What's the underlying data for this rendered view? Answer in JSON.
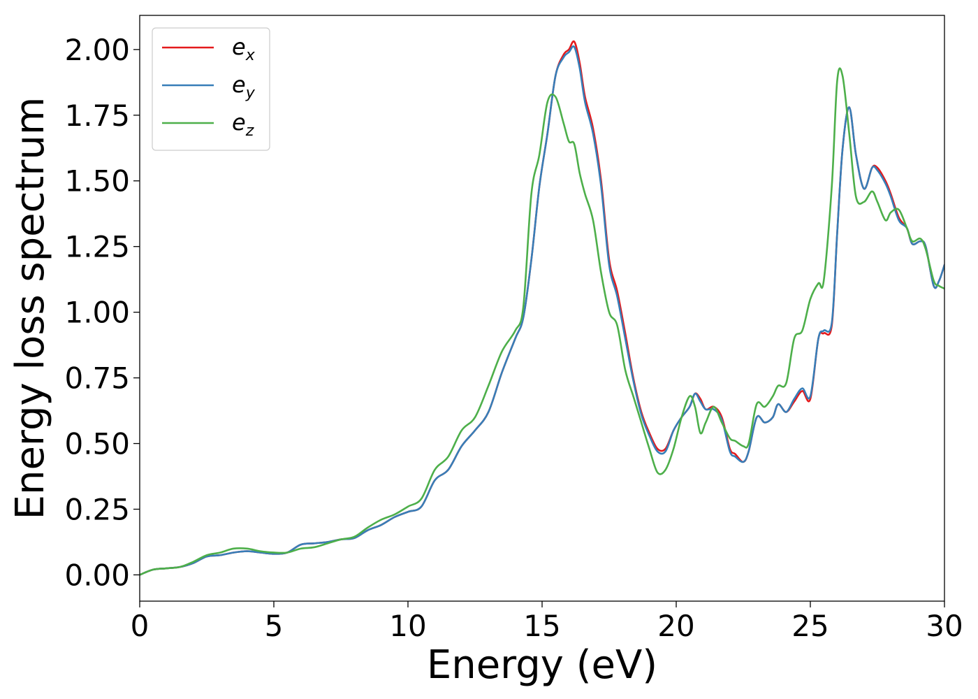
{
  "chart_data": {
    "type": "line",
    "title": "",
    "xlabel": "Energy (eV)",
    "ylabel": "Energy loss spectrum",
    "xlim": [
      0,
      30
    ],
    "ylim": [
      -0.1,
      2.13
    ],
    "xticks": [
      0,
      5,
      10,
      15,
      20,
      25,
      30
    ],
    "xtick_labels": [
      "0",
      "5",
      "10",
      "15",
      "20",
      "25",
      "30"
    ],
    "yticks": [
      0,
      0.25,
      0.5,
      0.75,
      1.0,
      1.25,
      1.5,
      1.75,
      2.0
    ],
    "ytick_labels": [
      "0.00",
      "0.25",
      "0.50",
      "0.75",
      "1.00",
      "1.25",
      "1.50",
      "1.75",
      "2.00"
    ],
    "grid": false,
    "legend_position": "top-left",
    "series": [
      {
        "name": "e_x",
        "legend_base": "e",
        "legend_sub": "x",
        "color": "#e41a1c",
        "x": [
          0,
          0.5,
          1,
          1.5,
          2,
          2.5,
          3,
          3.5,
          4,
          4.5,
          5,
          5.5,
          6,
          6.5,
          7,
          7.5,
          8,
          8.5,
          9,
          9.5,
          10,
          10.5,
          11,
          11.5,
          12,
          12.5,
          13,
          13.5,
          14,
          14.3,
          14.6,
          14.9,
          15.2,
          15.5,
          15.8,
          16.0,
          16.2,
          16.4,
          16.6,
          16.9,
          17.2,
          17.5,
          17.8,
          18.1,
          18.4,
          18.7,
          19.0,
          19.3,
          19.6,
          19.9,
          20.2,
          20.5,
          20.7,
          20.9,
          21.1,
          21.4,
          21.7,
          22.0,
          22.2,
          22.5,
          22.7,
          23.0,
          23.3,
          23.6,
          23.8,
          24.1,
          24.4,
          24.7,
          25.0,
          25.3,
          25.5,
          25.8,
          26.0,
          26.2,
          26.45,
          26.7,
          27.0,
          27.3,
          27.5,
          27.8,
          28.0,
          28.3,
          28.6,
          28.8,
          29.1,
          29.3,
          29.6,
          29.8,
          30.0
        ],
        "values": [
          0.0,
          0.02,
          0.025,
          0.03,
          0.045,
          0.07,
          0.075,
          0.085,
          0.09,
          0.085,
          0.08,
          0.085,
          0.115,
          0.12,
          0.125,
          0.135,
          0.14,
          0.17,
          0.19,
          0.22,
          0.24,
          0.26,
          0.36,
          0.4,
          0.49,
          0.55,
          0.62,
          0.77,
          0.9,
          0.98,
          1.2,
          1.48,
          1.68,
          1.9,
          1.98,
          2.0,
          2.03,
          1.95,
          1.82,
          1.7,
          1.5,
          1.2,
          1.08,
          0.92,
          0.75,
          0.62,
          0.54,
          0.48,
          0.48,
          0.55,
          0.6,
          0.64,
          0.69,
          0.67,
          0.63,
          0.64,
          0.6,
          0.48,
          0.46,
          0.43,
          0.47,
          0.6,
          0.58,
          0.6,
          0.65,
          0.62,
          0.66,
          0.7,
          0.67,
          0.9,
          0.92,
          0.95,
          1.3,
          1.62,
          1.78,
          1.6,
          1.47,
          1.55,
          1.55,
          1.5,
          1.45,
          1.36,
          1.32,
          1.26,
          1.27,
          1.25,
          1.1,
          1.12,
          1.18
        ]
      },
      {
        "name": "e_y",
        "legend_base": "e",
        "legend_sub": "y",
        "color": "#377eb8",
        "x": [
          0,
          0.5,
          1,
          1.5,
          2,
          2.5,
          3,
          3.5,
          4,
          4.5,
          5,
          5.5,
          6,
          6.5,
          7,
          7.5,
          8,
          8.5,
          9,
          9.5,
          10,
          10.5,
          11,
          11.5,
          12,
          12.5,
          13,
          13.5,
          14,
          14.3,
          14.6,
          14.9,
          15.2,
          15.5,
          15.8,
          16.0,
          16.2,
          16.4,
          16.6,
          16.9,
          17.2,
          17.5,
          17.8,
          18.1,
          18.4,
          18.7,
          19.0,
          19.3,
          19.6,
          19.9,
          20.2,
          20.5,
          20.7,
          20.9,
          21.1,
          21.4,
          21.7,
          22.0,
          22.2,
          22.5,
          22.7,
          23.0,
          23.3,
          23.6,
          23.8,
          24.1,
          24.4,
          24.7,
          25.0,
          25.3,
          25.5,
          25.8,
          26.0,
          26.2,
          26.45,
          26.7,
          27.0,
          27.3,
          27.5,
          27.8,
          28.0,
          28.3,
          28.6,
          28.8,
          29.1,
          29.3,
          29.6,
          29.8,
          30.0
        ],
        "values": [
          0.0,
          0.02,
          0.025,
          0.03,
          0.045,
          0.07,
          0.075,
          0.085,
          0.09,
          0.085,
          0.08,
          0.085,
          0.115,
          0.12,
          0.125,
          0.135,
          0.14,
          0.17,
          0.19,
          0.22,
          0.24,
          0.26,
          0.36,
          0.4,
          0.49,
          0.55,
          0.62,
          0.77,
          0.9,
          0.98,
          1.2,
          1.48,
          1.68,
          1.9,
          1.97,
          1.99,
          2.01,
          1.93,
          1.8,
          1.68,
          1.48,
          1.18,
          1.06,
          0.9,
          0.74,
          0.61,
          0.53,
          0.47,
          0.47,
          0.55,
          0.6,
          0.64,
          0.69,
          0.66,
          0.63,
          0.63,
          0.59,
          0.47,
          0.45,
          0.43,
          0.47,
          0.6,
          0.58,
          0.6,
          0.65,
          0.62,
          0.67,
          0.71,
          0.68,
          0.9,
          0.93,
          0.96,
          1.3,
          1.62,
          1.78,
          1.6,
          1.47,
          1.55,
          1.54,
          1.49,
          1.44,
          1.35,
          1.32,
          1.26,
          1.27,
          1.25,
          1.1,
          1.12,
          1.18
        ]
      },
      {
        "name": "e_z",
        "legend_base": "e",
        "legend_sub": "z",
        "color": "#4daf4a",
        "x": [
          0,
          0.5,
          1,
          1.5,
          2,
          2.5,
          3,
          3.5,
          4,
          4.5,
          5,
          5.5,
          6,
          6.5,
          7,
          7.5,
          8,
          8.5,
          9,
          9.5,
          10,
          10.5,
          11,
          11.5,
          12,
          12.5,
          13,
          13.5,
          14,
          14.3,
          14.6,
          14.9,
          15.2,
          15.5,
          15.8,
          16.0,
          16.2,
          16.4,
          16.6,
          16.9,
          17.2,
          17.5,
          17.8,
          18.1,
          18.4,
          18.7,
          19.0,
          19.3,
          19.6,
          19.9,
          20.2,
          20.5,
          20.7,
          20.9,
          21.1,
          21.4,
          21.7,
          22.0,
          22.2,
          22.5,
          22.7,
          23.0,
          23.3,
          23.6,
          23.8,
          24.1,
          24.4,
          24.7,
          25.0,
          25.3,
          25.5,
          25.8,
          26.0,
          26.2,
          26.45,
          26.7,
          27.0,
          27.3,
          27.5,
          27.8,
          28.0,
          28.3,
          28.6,
          28.8,
          29.1,
          29.3,
          29.6,
          29.8,
          30.0
        ],
        "values": [
          0.0,
          0.02,
          0.025,
          0.03,
          0.05,
          0.075,
          0.085,
          0.1,
          0.1,
          0.09,
          0.085,
          0.085,
          0.1,
          0.105,
          0.12,
          0.135,
          0.145,
          0.18,
          0.21,
          0.23,
          0.26,
          0.29,
          0.4,
          0.45,
          0.55,
          0.6,
          0.72,
          0.85,
          0.93,
          1.02,
          1.45,
          1.6,
          1.8,
          1.82,
          1.72,
          1.65,
          1.64,
          1.53,
          1.45,
          1.35,
          1.15,
          1.0,
          0.95,
          0.78,
          0.68,
          0.58,
          0.48,
          0.39,
          0.4,
          0.48,
          0.6,
          0.68,
          0.64,
          0.54,
          0.58,
          0.64,
          0.58,
          0.52,
          0.51,
          0.49,
          0.5,
          0.65,
          0.64,
          0.68,
          0.72,
          0.73,
          0.9,
          0.93,
          1.05,
          1.11,
          1.12,
          1.48,
          1.88,
          1.9,
          1.68,
          1.44,
          1.42,
          1.46,
          1.42,
          1.35,
          1.38,
          1.39,
          1.32,
          1.27,
          1.28,
          1.24,
          1.12,
          1.1,
          1.09
        ]
      }
    ]
  }
}
